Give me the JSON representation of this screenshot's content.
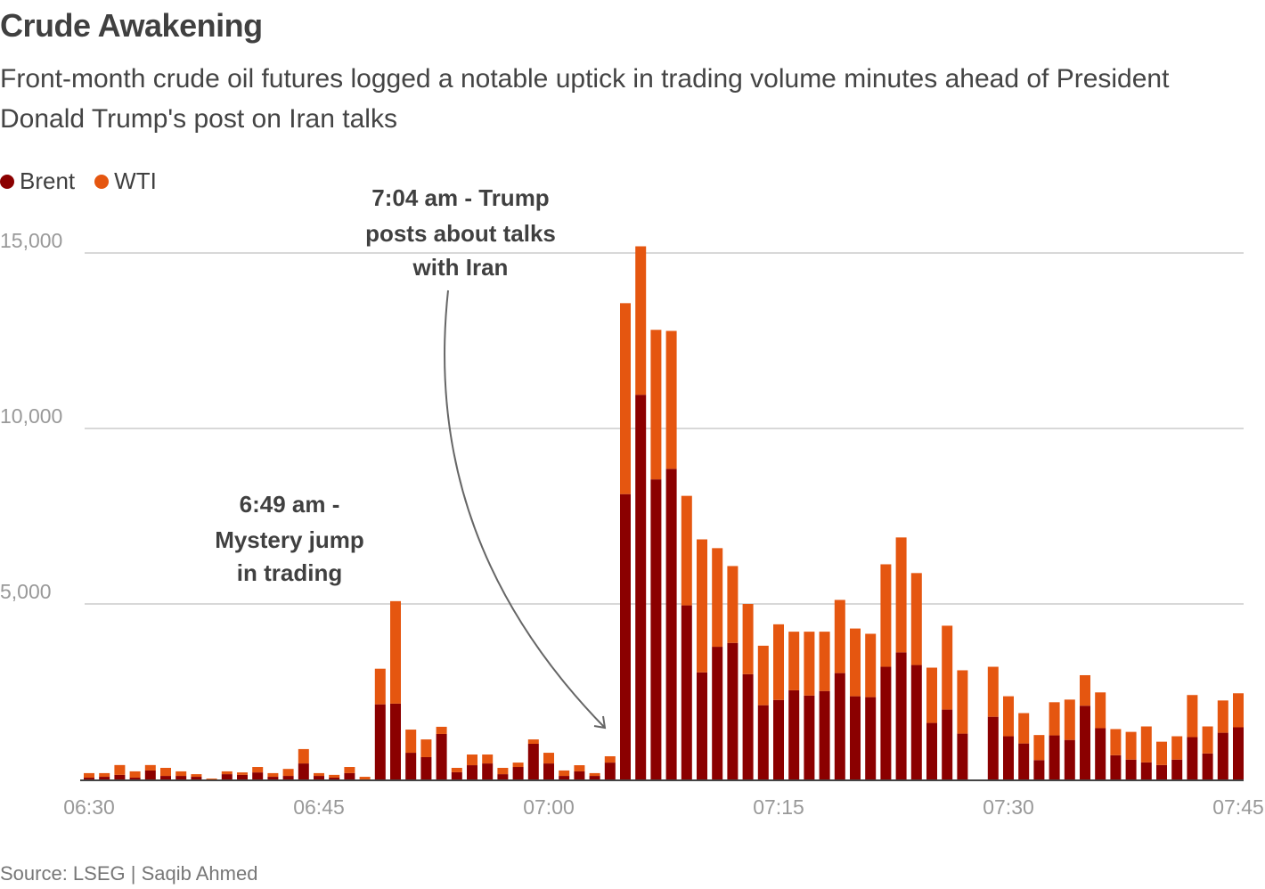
{
  "title": "Crude Awakening",
  "subtitle": "Front-month crude oil futures logged a notable uptick in trading volume minutes ahead of President Donald Trump's post on Iran talks",
  "source": "Source: LSEG | Saqib Ahmed",
  "colors": {
    "Brent": "#8b0000",
    "WTI": "#e55610",
    "grid": "#cccccc",
    "axis": "#444444",
    "arrow": "#666666"
  },
  "chart_data": {
    "type": "bar",
    "stacked": true,
    "legend_position": "top-left",
    "grid": true,
    "ylim": [
      0,
      15500
    ],
    "yticks": [
      5000,
      10000,
      15000
    ],
    "ytick_labels": [
      "5,000",
      "10,000",
      "15,000"
    ],
    "xtick_labels": [
      "06:30",
      "06:45",
      "07:00",
      "07:15",
      "07:30",
      "07:45"
    ],
    "categories": [
      "06:30",
      "06:31",
      "06:32",
      "06:33",
      "06:34",
      "06:35",
      "06:36",
      "06:37",
      "06:38",
      "06:39",
      "06:40",
      "06:41",
      "06:42",
      "06:43",
      "06:44",
      "06:45",
      "06:46",
      "06:47",
      "06:48",
      "06:49",
      "06:50",
      "06:51",
      "06:52",
      "06:53",
      "06:54",
      "06:55",
      "06:56",
      "06:57",
      "06:58",
      "06:59",
      "07:00",
      "07:01",
      "07:02",
      "07:03",
      "07:04",
      "07:05",
      "07:06",
      "07:07",
      "07:08",
      "07:09",
      "07:10",
      "07:11",
      "07:12",
      "07:13",
      "07:14",
      "07:15",
      "07:16",
      "07:17",
      "07:18",
      "07:19",
      "07:20",
      "07:21",
      "07:22",
      "07:23",
      "07:24",
      "07:25",
      "07:26",
      "07:27",
      "07:28",
      "07:29",
      "07:30",
      "07:31",
      "07:32",
      "07:33",
      "07:34",
      "07:35",
      "07:36",
      "07:37",
      "07:38",
      "07:39",
      "07:40",
      "07:41",
      "07:42",
      "07:43",
      "07:44",
      "07:45"
    ],
    "series": [
      {
        "name": "Brent",
        "values": [
          50,
          75,
          130,
          50,
          255,
          100,
          100,
          75,
          0,
          150,
          130,
          200,
          75,
          100,
          455,
          100,
          50,
          180,
          0,
          2140,
          2160,
          760,
          635,
          1295,
          205,
          405,
          455,
          150,
          355,
          1015,
          455,
          100,
          230,
          100,
          480,
          8130,
          10960,
          8550,
          8850,
          4960,
          3050,
          3780,
          3890,
          3000,
          2115,
          2265,
          2540,
          2390,
          2520,
          3030,
          2370,
          2345,
          3210,
          3620,
          3260,
          1610,
          1990,
          1305,
          null,
          1785,
          1230,
          1025,
          550,
          1255,
          1125,
          2100,
          1460,
          690,
          565,
          485,
          410,
          565,
          1205,
          740,
          1330,
          1485
        ]
      },
      {
        "name": "WTI",
        "values": [
          130,
          105,
          280,
          180,
          155,
          230,
          130,
          75,
          25,
          80,
          70,
          155,
          105,
          200,
          410,
          80,
          80,
          175,
          75,
          1015,
          2920,
          660,
          505,
          205,
          125,
          305,
          255,
          180,
          125,
          125,
          305,
          155,
          175,
          80,
          180,
          5440,
          4230,
          4260,
          3930,
          3120,
          3790,
          2810,
          2190,
          2000,
          1695,
          2155,
          1670,
          1820,
          1690,
          2085,
          1930,
          1805,
          2920,
          3275,
          2620,
          1575,
          2390,
          1805,
          null,
          1425,
          1140,
          865,
          715,
          945,
          1150,
          870,
          1020,
          745,
          790,
          1025,
          665,
          665,
          1200,
          770,
          920,
          970
        ]
      }
    ],
    "annotations": [
      {
        "lines": [
          "7:04 am - Trump",
          "posts about talks",
          "with Iran"
        ],
        "target": "07:04"
      },
      {
        "lines": [
          "6:49 am -",
          "Mystery jump",
          "in trading"
        ],
        "target": "06:49"
      }
    ]
  }
}
